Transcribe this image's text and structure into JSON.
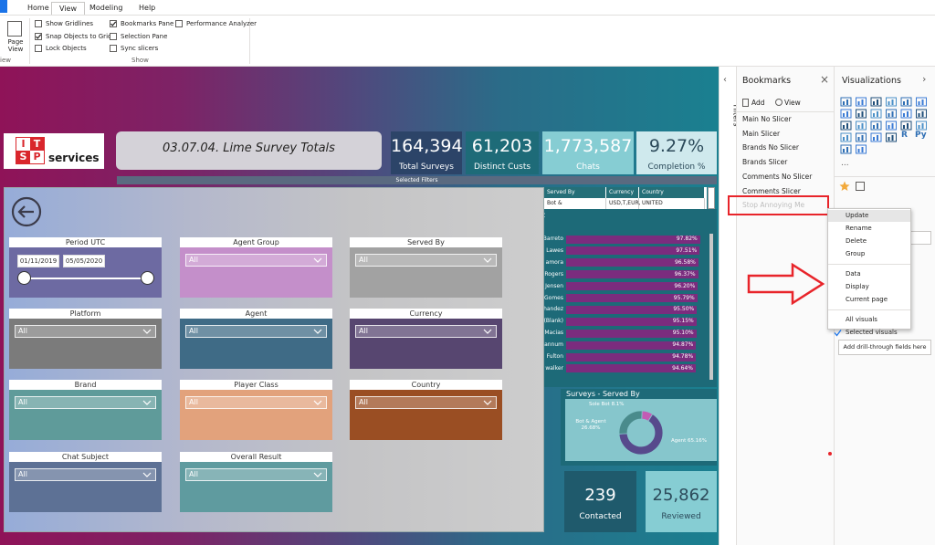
{
  "ribbon": {
    "tabs": [
      {
        "label": "Home"
      },
      {
        "label": "View",
        "active": true
      },
      {
        "label": "Modeling"
      },
      {
        "label": "Help"
      }
    ],
    "page_view": "Page View",
    "left_group_label": "iew",
    "options": [
      {
        "label": "Show Gridlines",
        "checked": false
      },
      {
        "label": "Snap Objects to Grid",
        "checked": true
      },
      {
        "label": "Lock Objects",
        "checked": false
      },
      {
        "label": "Bookmarks Pane",
        "checked": true
      },
      {
        "label": "Selection Pane",
        "checked": false
      },
      {
        "label": "Sync slicers",
        "checked": false
      },
      {
        "label": "Performance Analyzer",
        "checked": false
      }
    ],
    "group_label": "Show"
  },
  "report": {
    "logo": {
      "letters": [
        "I",
        "T",
        "S",
        "P"
      ],
      "text": "services"
    },
    "title": "03.07.04. Lime Survey Totals",
    "kpis": [
      {
        "value": "164,394",
        "label": "Total Surveys",
        "color": "#2c4468",
        "text": "#ffffff"
      },
      {
        "value": "61,203",
        "label": "Distinct Custs",
        "color": "#1e6b78",
        "text": "#ffffff"
      },
      {
        "value": "1,773,587",
        "label": "Chats",
        "color": "#86cdd3",
        "text": "#ffffff"
      },
      {
        "value": "9.27%",
        "label": "Completion %",
        "color": "#cfe9ed",
        "text": "#2c4a5a"
      }
    ],
    "selected_filters": "Selected Filters",
    "slicers": [
      {
        "title": "Period UTC",
        "start": "01/11/2019",
        "end": "05/05/2020",
        "color": "#6d6aa2"
      },
      {
        "title": "Agent Group",
        "value": "All",
        "color": "#c48fca"
      },
      {
        "title": "Served By",
        "value": "All",
        "color": "#a2a2a2"
      },
      {
        "title": "Platform",
        "value": "All",
        "color": "#7b7b7b"
      },
      {
        "title": "Agent",
        "value": "All",
        "color": "#3f6b86"
      },
      {
        "title": "Currency",
        "value": "All",
        "color": "#574670"
      },
      {
        "title": "Brand",
        "value": "All",
        "color": "#5f9b9a"
      },
      {
        "title": "Player Class",
        "value": "All",
        "color": "#e2a27c"
      },
      {
        "title": "Country",
        "value": "All",
        "color": "#9a4e23"
      },
      {
        "title": "Chat Subject",
        "value": "All",
        "color": "#5d7195"
      },
      {
        "title": "Overall Result",
        "value": "All",
        "color": "#5f9b9f"
      }
    ],
    "filter_table": {
      "columns": [
        "Served By",
        "Currency",
        "Country"
      ],
      "row": [
        "Bot &",
        "USD,T,EUR,",
        "UNITED"
      ]
    },
    "ranking_title": "t",
    "ranking": [
      {
        "name": "Barreto",
        "value": "97.82%"
      },
      {
        "name": "Lawes",
        "value": "97.51%"
      },
      {
        "name": "amora",
        "value": "96.58%"
      },
      {
        "name": "Rogers",
        "value": "96.37%"
      },
      {
        "name": "Jensen",
        "value": "96.20%"
      },
      {
        "name": "Gomes",
        "value": "95.79%"
      },
      {
        "name": "handez",
        "value": "95.50%"
      },
      {
        "name": "(Blank)",
        "value": "95.15%"
      },
      {
        "name": "Macias",
        "value": "95.10%"
      },
      {
        "name": "annum",
        "value": "94.87%"
      },
      {
        "name": "Fulton",
        "value": "94.78%"
      },
      {
        "name": "walker",
        "value": "94.64%"
      }
    ],
    "donut": {
      "title": "Surveys - Served By",
      "segments": [
        {
          "name": "Sole Bot",
          "value": 8.1,
          "value_label": "8.1%",
          "color": "#c35bb4"
        },
        {
          "name": "Agent",
          "value": 65.16,
          "value_label": "65.16%",
          "color": "#574a8c"
        },
        {
          "name": "Bot & Agent",
          "value": 26.68,
          "value_label": "26.68%",
          "color": "#4a8b8c"
        }
      ]
    },
    "cards": [
      {
        "value": "239",
        "label": "Contacted",
        "color": "#1f5a6c",
        "text": "#ffffff"
      },
      {
        "value": "25,862",
        "label": "Reviewed",
        "color": "#86cdd3",
        "text": "#2c4a5a"
      }
    ]
  },
  "filters_label": "Filters",
  "bookmarks": {
    "title": "Bookmarks",
    "add": "Add",
    "view": "View",
    "items": [
      "Main No Slicer",
      "Main Slicer",
      "Brands No Slicer",
      "Brands Slicer",
      "Comments No Slicer",
      "Comments Slicer",
      "Stop Annoying Me"
    ]
  },
  "context_menu": {
    "groups": [
      [
        {
          "label": "Update",
          "highlighted": true
        },
        {
          "label": "Rename"
        },
        {
          "label": "Delete"
        },
        {
          "label": "Group"
        }
      ],
      [
        {
          "label": "Data"
        },
        {
          "label": "Display"
        },
        {
          "label": "Current page"
        }
      ],
      [
        {
          "label": "All visuals"
        },
        {
          "label": "Selected visuals",
          "checked": true
        }
      ]
    ]
  },
  "visualizations": {
    "title": "Visualizations",
    "icon_labels": [
      "R",
      "Py"
    ],
    "more": "...",
    "drill_through": "Add drill-through fields here"
  }
}
